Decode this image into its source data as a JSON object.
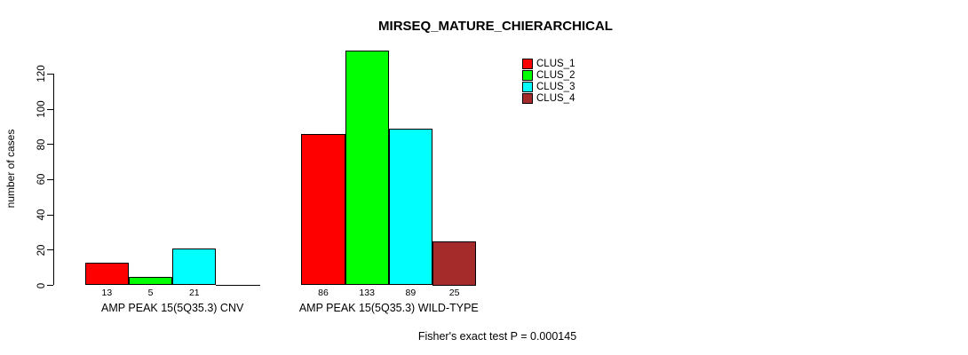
{
  "chart_data": {
    "type": "bar",
    "title": "MIRSEQ_MATURE_CHIERARCHICAL",
    "ylabel": "number of cases",
    "xlabel": "",
    "categories": [
      "AMP PEAK 15(5Q35.3) CNV",
      "AMP PEAK 15(5Q35.3) WILD-TYPE"
    ],
    "series": [
      {
        "name": "CLUS_1",
        "color": "#ff0000",
        "values": [
          13,
          86
        ]
      },
      {
        "name": "CLUS_2",
        "color": "#00ff00",
        "values": [
          5,
          133
        ]
      },
      {
        "name": "CLUS_3",
        "color": "#00ffff",
        "values": [
          21,
          89
        ]
      },
      {
        "name": "CLUS_4",
        "color": "#a52a2a",
        "values": [
          0,
          25
        ]
      }
    ],
    "yticks": [
      0,
      20,
      40,
      60,
      80,
      100,
      120
    ],
    "ylim": [
      0,
      133
    ],
    "grid": false,
    "legend_position": "top-right",
    "bar_value_labels": "shown under each bar; zero values have no label",
    "annotation": "Fisher's exact test P = 0.000145"
  }
}
